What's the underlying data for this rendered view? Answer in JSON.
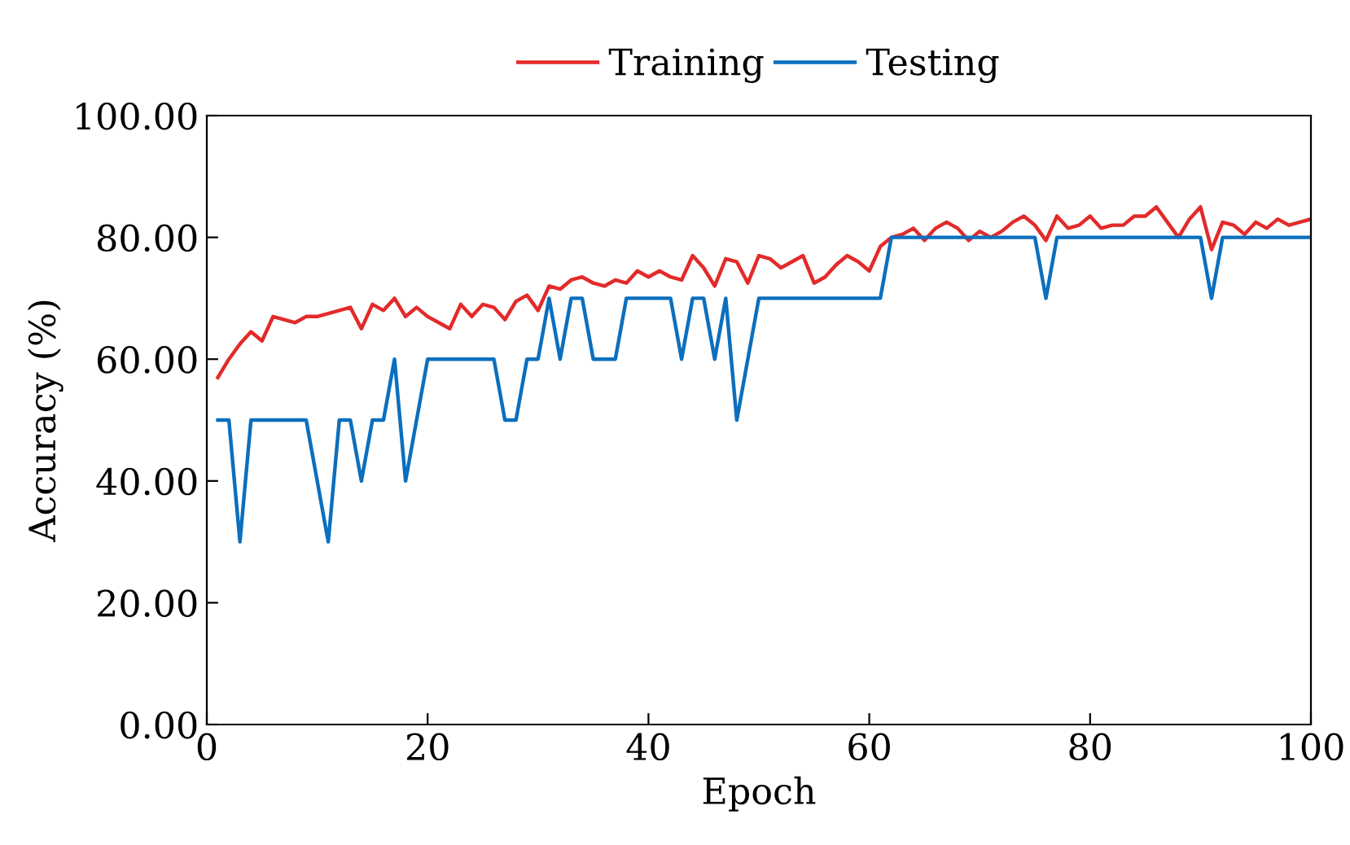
{
  "chart_data": {
    "type": "line",
    "xlabel": "Epoch",
    "ylabel": "Accuracy (%)",
    "x": [
      1,
      2,
      3,
      4,
      5,
      6,
      7,
      8,
      9,
      10,
      11,
      12,
      13,
      14,
      15,
      16,
      17,
      18,
      19,
      20,
      21,
      22,
      23,
      24,
      25,
      26,
      27,
      28,
      29,
      30,
      31,
      32,
      33,
      34,
      35,
      36,
      37,
      38,
      39,
      40,
      41,
      42,
      43,
      44,
      45,
      46,
      47,
      48,
      49,
      50,
      51,
      52,
      53,
      54,
      55,
      56,
      57,
      58,
      59,
      60,
      61,
      62,
      63,
      64,
      65,
      66,
      67,
      68,
      69,
      70,
      71,
      72,
      73,
      74,
      75,
      76,
      77,
      78,
      79,
      80,
      81,
      82,
      83,
      84,
      85,
      86,
      87,
      88,
      89,
      90,
      91,
      92,
      93,
      94,
      95,
      96,
      97,
      98,
      99,
      100
    ],
    "series": [
      {
        "name": "Training",
        "color": "#e32a2a",
        "values": [
          57,
          60,
          62.5,
          64.5,
          63,
          67,
          66.5,
          66,
          67,
          67,
          67.5,
          68,
          68.5,
          65,
          69,
          68,
          70,
          67,
          68.5,
          67,
          66,
          65,
          69,
          67,
          69,
          68.5,
          66.5,
          69.5,
          70.5,
          68,
          72,
          71.5,
          73,
          73.5,
          72.5,
          72,
          73,
          72.5,
          74.5,
          73.5,
          74.5,
          73.5,
          73,
          77,
          75,
          72,
          76.5,
          76,
          72.5,
          77,
          76.5,
          75,
          76,
          77,
          72.5,
          73.5,
          75.5,
          77,
          76,
          74.5,
          78.5,
          80,
          80.5,
          81.5,
          79.5,
          81.5,
          82.5,
          81.5,
          79.5,
          81,
          80,
          81,
          82.5,
          83.5,
          82,
          79.5,
          83.5,
          81.5,
          82,
          83.5,
          81.5,
          82,
          82,
          83.5,
          83.5,
          85,
          82.5,
          80,
          83,
          85,
          78,
          82.5,
          82,
          80.5,
          82.5,
          81.5,
          83,
          82,
          82.5,
          83
        ]
      },
      {
        "name": "Testing",
        "color": "#0b6fbe",
        "values": [
          50,
          50,
          30,
          50,
          50,
          50,
          50,
          50,
          50,
          40,
          30,
          50,
          50,
          40,
          50,
          50,
          60,
          40,
          50,
          60,
          60,
          60,
          60,
          60,
          60,
          60,
          50,
          50,
          60,
          60,
          70,
          60,
          70,
          70,
          60,
          60,
          60,
          70,
          70,
          70,
          70,
          70,
          60,
          70,
          70,
          60,
          70,
          50,
          60,
          70,
          70,
          70,
          70,
          70,
          70,
          70,
          70,
          70,
          70,
          70,
          70,
          80,
          80,
          80,
          80,
          80,
          80,
          80,
          80,
          80,
          80,
          80,
          80,
          80,
          80,
          70,
          80,
          80,
          80,
          80,
          80,
          80,
          80,
          80,
          80,
          80,
          80,
          80,
          80,
          80,
          70,
          80,
          80,
          80,
          80,
          80,
          80,
          80,
          80,
          80
        ]
      }
    ],
    "xlim": [
      0,
      100
    ],
    "xticks": [
      0,
      20,
      40,
      60,
      80,
      100
    ],
    "ylim": [
      0,
      100
    ],
    "yticks": [
      {
        "value": 0,
        "label": "0.00"
      },
      {
        "value": 20,
        "label": "20.00"
      },
      {
        "value": 40,
        "label": "40.00"
      },
      {
        "value": 60,
        "label": "60.00"
      },
      {
        "value": 80,
        "label": "80.00"
      },
      {
        "value": 100,
        "label": "100.00"
      }
    ],
    "legend": "top",
    "grid": false,
    "marker": "none",
    "line_style": "solid"
  }
}
